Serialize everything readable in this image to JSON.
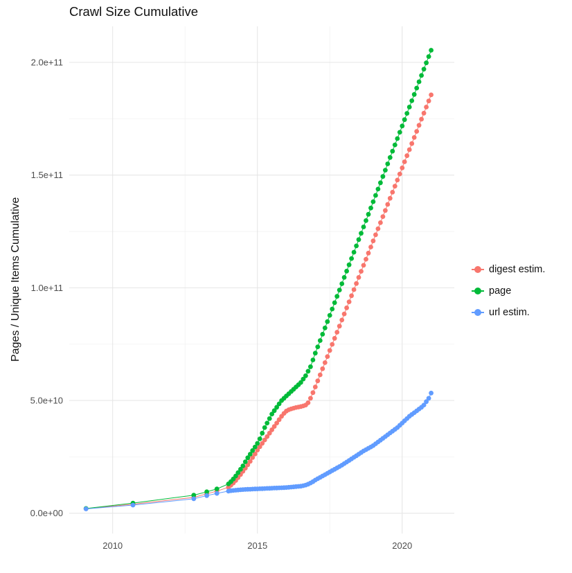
{
  "chart_data": {
    "type": "scatter",
    "title": "Crawl Size Cumulative",
    "xlabel": "",
    "ylabel": "Pages / Unique Items Cumulative",
    "grid": true,
    "legend_position": "right",
    "x_domain": [
      2008.5,
      2021.8
    ],
    "y_domain": [
      -9000000000.0,
      216000000000.0
    ],
    "x_ticks": [
      {
        "v": 2010,
        "label": "2010"
      },
      {
        "v": 2015,
        "label": "2015"
      },
      {
        "v": 2020,
        "label": "2020"
      }
    ],
    "y_ticks": [
      {
        "v": 0,
        "label": "0.0e+00"
      },
      {
        "v": 50000000000.0,
        "label": "5.0e+10"
      },
      {
        "v": 100000000000.0,
        "label": "1.0e+11"
      },
      {
        "v": 150000000000.0,
        "label": "1.5e+11"
      },
      {
        "v": 200000000000.0,
        "label": "2.0e+11"
      }
    ],
    "x_minor": [
      2012.5,
      2017.5
    ],
    "y_minor": [
      25000000000.0,
      75000000000.0,
      125000000000.0,
      175000000000.0
    ],
    "y_value_unit": 1000000000.0,
    "x": [
      2009.08,
      2010.7,
      2012.8,
      2013.25,
      2013.6,
      2014.0,
      2014.083,
      2014.167,
      2014.25,
      2014.333,
      2014.417,
      2014.5,
      2014.583,
      2014.667,
      2014.75,
      2014.833,
      2014.917,
      2015.0,
      2015.083,
      2015.167,
      2015.25,
      2015.333,
      2015.417,
      2015.5,
      2015.583,
      2015.667,
      2015.75,
      2015.833,
      2015.917,
      2016.0,
      2016.083,
      2016.167,
      2016.25,
      2016.333,
      2016.417,
      2016.5,
      2016.583,
      2016.667,
      2016.75,
      2016.833,
      2016.917,
      2017.0,
      2017.083,
      2017.167,
      2017.25,
      2017.333,
      2017.417,
      2017.5,
      2017.583,
      2017.667,
      2017.75,
      2017.833,
      2017.917,
      2018.0,
      2018.083,
      2018.167,
      2018.25,
      2018.333,
      2018.417,
      2018.5,
      2018.583,
      2018.667,
      2018.75,
      2018.833,
      2018.917,
      2019.0,
      2019.083,
      2019.167,
      2019.25,
      2019.333,
      2019.417,
      2019.5,
      2019.583,
      2019.667,
      2019.75,
      2019.833,
      2019.917,
      2020.0,
      2020.083,
      2020.167,
      2020.25,
      2020.333,
      2020.417,
      2020.5,
      2020.583,
      2020.667,
      2020.75,
      2020.833,
      2020.917,
      2021.0
    ],
    "series": [
      {
        "name": "digest estim.",
        "color": "#F8766D",
        "values": [
          2.0,
          4.0,
          7.0,
          8.6,
          9.8,
          11.5,
          12.4,
          13.4,
          14.5,
          15.8,
          17.2,
          18.6,
          20,
          21.5,
          23,
          24.7,
          26.3,
          28,
          29.5,
          31,
          32.5,
          34,
          35.5,
          37,
          38.5,
          40,
          41.5,
          43,
          44.3,
          45.3,
          45.9,
          46.3,
          46.6,
          46.9,
          47.1,
          47.3,
          47.6,
          48,
          49,
          51,
          53.5,
          56,
          58.7,
          61.4,
          64.1,
          66.8,
          69.5,
          72.2,
          74.9,
          77.6,
          80.3,
          83,
          85.7,
          88.4,
          91.1,
          93.8,
          96.5,
          99.2,
          101.9,
          104.6,
          107.3,
          110,
          112.7,
          115.4,
          118.1,
          120.8,
          123.5,
          126.2,
          128.9,
          131.6,
          134.3,
          137,
          139.7,
          142.4,
          145.1,
          147.8,
          150.5,
          153.2,
          155.9,
          158.6,
          161.3,
          164,
          166.7,
          169.4,
          172.1,
          174.8,
          177.5,
          180.2,
          182.9,
          185.6
        ]
      },
      {
        "name": "page",
        "color": "#00BA38",
        "values": [
          2.1,
          4.5,
          8.0,
          9.5,
          10.8,
          13,
          14,
          15.2,
          16.5,
          18,
          19.5,
          21,
          22.8,
          24.6,
          26.2,
          27.8,
          29.4,
          31,
          33,
          35.5,
          38,
          40,
          42,
          44,
          45.5,
          47,
          48.5,
          50,
          51,
          52,
          53,
          54,
          55,
          56,
          57,
          58,
          59.5,
          61,
          63,
          65,
          68,
          71,
          73.8,
          76.6,
          79.4,
          82.2,
          85,
          87.8,
          90.6,
          93.4,
          96.2,
          99,
          101.8,
          104.6,
          107.4,
          110.2,
          113,
          115.8,
          118.6,
          121.4,
          124.2,
          127,
          129.8,
          132.6,
          135.4,
          138.2,
          141,
          143.8,
          146.6,
          149.4,
          152.2,
          155,
          157.8,
          160.6,
          163.4,
          166.2,
          169,
          171.8,
          174.6,
          177.4,
          180.2,
          183,
          185.8,
          188.6,
          191.4,
          194.2,
          197,
          199.8,
          202.6,
          205.4
        ]
      },
      {
        "name": "url estim.",
        "color": "#619CFF",
        "values": [
          1.9,
          3.6,
          6.4,
          7.8,
          8.8,
          9.8,
          10.0,
          10.1,
          10.2,
          10.3,
          10.4,
          10.5,
          10.55,
          10.6,
          10.65,
          10.7,
          10.75,
          10.8,
          10.85,
          10.9,
          10.95,
          11.0,
          11.05,
          11.1,
          11.15,
          11.2,
          11.25,
          11.3,
          11.35,
          11.4,
          11.5,
          11.6,
          11.7,
          11.8,
          11.9,
          12.0,
          12.2,
          12.5,
          12.9,
          13.4,
          14.0,
          14.7,
          15.3,
          15.9,
          16.5,
          17.1,
          17.7,
          18.3,
          18.9,
          19.5,
          20.1,
          20.7,
          21.3,
          22,
          22.7,
          23.4,
          24.1,
          24.8,
          25.5,
          26.2,
          26.9,
          27.6,
          28.2,
          28.8,
          29.4,
          30,
          30.8,
          31.6,
          32.4,
          33.2,
          34,
          34.8,
          35.6,
          36.4,
          37.2,
          38,
          39,
          40,
          41,
          42,
          43,
          43.8,
          44.6,
          45.4,
          46.2,
          47,
          48,
          49.5,
          51,
          53.3
        ]
      }
    ]
  }
}
